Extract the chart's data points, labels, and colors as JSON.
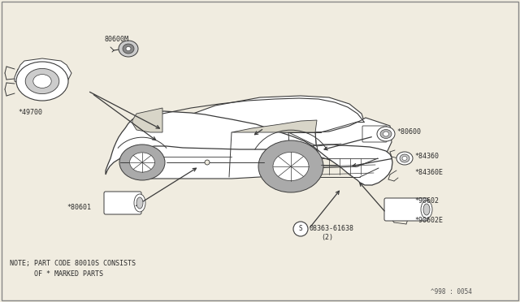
{
  "bg_color": "#f0ece0",
  "line_color": "#3a3a3a",
  "text_color": "#2a2a2a",
  "diagram_ref": "^998 : 0054",
  "note_line1": "NOTE; PART CODE 80010S CONSISTS",
  "note_line2": "      OF * MARKED PARTS"
}
